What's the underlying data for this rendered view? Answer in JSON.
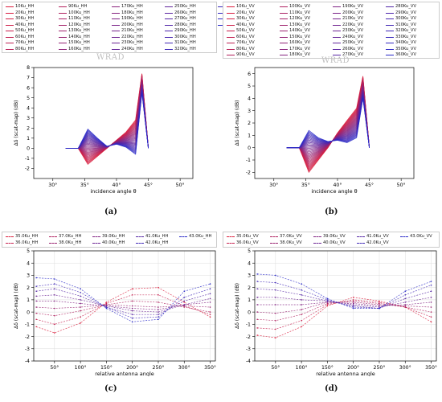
{
  "chart_data": [
    {
      "type": "line",
      "panel_label": "(a)",
      "watermark": "WRAD",
      "xlabel": "incidence angle θ",
      "ylabel": "Δδ (scat-map) (dB)",
      "xlim": [
        27,
        52
      ],
      "ylim": [
        -3,
        8
      ],
      "xticks": [
        30,
        35,
        40,
        45,
        50
      ],
      "xtick_labels": [
        "30°",
        "35°",
        "40°",
        "45°",
        "50°"
      ],
      "yticks": [
        -2,
        -1,
        0,
        1,
        2,
        3,
        4,
        5,
        6,
        7,
        8
      ],
      "legend_entries": [
        "10Ku_HH",
        "20Ku_HH",
        "30Ku_HH",
        "40Ku_HH",
        "50Ku_HH",
        "60Ku_HH",
        "70Ku_HH",
        "80Ku_HH",
        "90Ku_HH",
        "100Ku_HH",
        "110Ku_HH",
        "120Ku_HH",
        "130Ku_HH",
        "140Ku_HH",
        "150Ku_HH",
        "160Ku_HH",
        "170Ku_HH",
        "180Ku_HH",
        "190Ku_HH",
        "200Ku_HH",
        "210Ku_HH",
        "220Ku_HH",
        "230Ku_HH",
        "240Ku_HH",
        "250Ku_HH",
        "260Ku_HH",
        "270Ku_HH",
        "280Ku_HH",
        "290Ku_HH",
        "300Ku_HH",
        "310Ku_HH",
        "320Ku_HH",
        "330Ku_HH",
        "340Ku_HH",
        "350Ku_HH",
        "360Ku_HH"
      ],
      "x": [
        32,
        34,
        35.5,
        37,
        38.5,
        40,
        41.5,
        43,
        44,
        45
      ],
      "series_profile": {
        "first": [
          0,
          0,
          -1.6,
          -0.8,
          0,
          0.8,
          1.6,
          2.8,
          7.4,
          0
        ],
        "last": [
          0,
          0,
          1.9,
          1.0,
          0.2,
          0.4,
          0.1,
          -0.6,
          5.5,
          0
        ]
      }
    },
    {
      "type": "line",
      "panel_label": "(b)",
      "watermark": "WRAD",
      "xlabel": "incidence angle θ",
      "ylabel": "Δδ (scat-map) (dB)",
      "xlim": [
        27,
        52
      ],
      "ylim": [
        -2.5,
        6.5
      ],
      "xticks": [
        30,
        35,
        40,
        45,
        50
      ],
      "xtick_labels": [
        "30°",
        "35°",
        "40°",
        "45°",
        "50°"
      ],
      "yticks": [
        -2,
        -1,
        0,
        1,
        2,
        3,
        4,
        5,
        6
      ],
      "legend_entries": [
        "10Ku_VV",
        "20Ku_VV",
        "30Ku_VV",
        "40Ku_VV",
        "50Ku_VV",
        "60Ku_VV",
        "70Ku_VV",
        "80Ku_VV",
        "90Ku_VV",
        "100Ku_VV",
        "110Ku_VV",
        "120Ku_VV",
        "130Ku_VV",
        "140Ku_VV",
        "150Ku_VV",
        "160Ku_VV",
        "170Ku_VV",
        "180Ku_VV",
        "190Ku_VV",
        "200Ku_VV",
        "210Ku_VV",
        "220Ku_VV",
        "230Ku_VV",
        "240Ku_VV",
        "250Ku_VV",
        "260Ku_VV",
        "270Ku_VV",
        "280Ku_VV",
        "290Ku_VV",
        "300Ku_VV",
        "310Ku_VV",
        "320Ku_VV",
        "330Ku_VV",
        "340Ku_VV",
        "350Ku_VV",
        "360Ku_VV"
      ],
      "x": [
        32,
        34,
        35.5,
        37,
        38.5,
        40,
        41.5,
        43,
        44,
        45
      ],
      "series_profile": {
        "first": [
          0,
          0,
          -2.0,
          -1.0,
          0,
          1.2,
          2.2,
          3.2,
          5.8,
          0
        ],
        "last": [
          0,
          0,
          1.4,
          0.8,
          0.5,
          0.6,
          0.4,
          0.8,
          4.0,
          0
        ]
      }
    },
    {
      "type": "line",
      "panel_label": "(c)",
      "xlabel": "relative antenna angle",
      "ylabel": "Δδ (scat-map) (dB)",
      "xlim": [
        10,
        360
      ],
      "ylim": [
        -4,
        5
      ],
      "xticks": [
        50,
        100,
        150,
        200,
        250,
        300,
        350
      ],
      "xtick_labels": [
        "50°",
        "100°",
        "150°",
        "200°",
        "250°",
        "300°",
        "350°"
      ],
      "yticks": [
        -4,
        -3,
        -2,
        -1,
        0,
        1,
        2,
        3,
        4,
        5
      ],
      "x": [
        15,
        50,
        100,
        150,
        200,
        250,
        300,
        350
      ],
      "series": [
        {
          "name": "35.0Ku_HH",
          "values": [
            -1.2,
            -1.7,
            -0.9,
            0.8,
            1.9,
            2.0,
            0.8,
            -0.4
          ]
        },
        {
          "name": "36.0Ku_HH",
          "values": [
            -0.6,
            -1.0,
            -0.4,
            0.7,
            1.4,
            1.4,
            0.5,
            -0.2
          ]
        },
        {
          "name": "37.0Ku_HH",
          "values": [
            -0.1,
            -0.3,
            0.1,
            0.6,
            0.9,
            0.8,
            0.4,
            0.0
          ]
        },
        {
          "name": "38.0Ku_HH",
          "values": [
            0.4,
            0.3,
            0.4,
            0.6,
            0.5,
            0.4,
            0.5,
            0.4
          ]
        },
        {
          "name": "39.0Ku_HH",
          "values": [
            0.9,
            0.9,
            0.7,
            0.5,
            0.3,
            0.2,
            0.6,
            0.8
          ]
        },
        {
          "name": "40.0Ku_HH",
          "values": [
            1.3,
            1.4,
            1.0,
            0.5,
            0.1,
            0.0,
            0.6,
            1.1
          ]
        },
        {
          "name": "41.0Ku_HH",
          "values": [
            1.7,
            1.9,
            1.3,
            0.4,
            -0.2,
            -0.2,
            0.9,
            1.5
          ]
        },
        {
          "name": "42.0Ku_HH",
          "values": [
            2.1,
            2.3,
            1.6,
            0.4,
            -0.5,
            -0.4,
            1.2,
            1.9
          ]
        },
        {
          "name": "43.0Ku_HH",
          "values": [
            2.8,
            2.7,
            1.9,
            0.3,
            -0.8,
            -0.6,
            1.7,
            2.3
          ]
        }
      ]
    },
    {
      "type": "line",
      "panel_label": "(d)",
      "xlabel": "relative antenna angle",
      "ylabel": "Δδ (scat-map) (dB)",
      "xlim": [
        10,
        360
      ],
      "ylim": [
        -4,
        5
      ],
      "xticks": [
        50,
        100,
        150,
        200,
        250,
        300,
        350
      ],
      "xtick_labels": [
        "50°",
        "100°",
        "150°",
        "200°",
        "250°",
        "300°",
        "350°"
      ],
      "yticks": [
        -4,
        -3,
        -2,
        -1,
        0,
        1,
        2,
        3,
        4,
        5
      ],
      "x": [
        15,
        50,
        100,
        150,
        200,
        250,
        300,
        350
      ],
      "series": [
        {
          "name": "35.0Ku_VV",
          "values": [
            -1.9,
            -2.1,
            -1.2,
            0.5,
            1.2,
            0.9,
            0.4,
            -0.8
          ]
        },
        {
          "name": "36.0Ku_VV",
          "values": [
            -1.3,
            -1.4,
            -0.7,
            0.6,
            1.0,
            0.8,
            0.4,
            -0.4
          ]
        },
        {
          "name": "37.0Ku_VV",
          "values": [
            -0.6,
            -0.7,
            -0.2,
            0.7,
            0.9,
            0.7,
            0.4,
            0.0
          ]
        },
        {
          "name": "38.0Ku_VV",
          "values": [
            0.0,
            -0.1,
            0.2,
            0.8,
            0.8,
            0.6,
            0.5,
            0.4
          ]
        },
        {
          "name": "39.0Ku_VV",
          "values": [
            0.6,
            0.6,
            0.6,
            0.8,
            0.7,
            0.5,
            0.6,
            0.8
          ]
        },
        {
          "name": "40.0Ku_VV",
          "values": [
            1.2,
            1.2,
            1.0,
            0.9,
            0.6,
            0.4,
            0.8,
            1.2
          ]
        },
        {
          "name": "41.0Ku_VV",
          "values": [
            1.9,
            1.8,
            1.4,
            0.9,
            0.5,
            0.3,
            1.1,
            1.7
          ]
        },
        {
          "name": "42.0Ku_VV",
          "values": [
            2.5,
            2.4,
            1.8,
            1.0,
            0.4,
            0.3,
            1.4,
            2.2
          ]
        },
        {
          "name": "43.0Ku_VV",
          "values": [
            3.1,
            3.0,
            2.3,
            1.1,
            0.3,
            0.3,
            1.7,
            2.5
          ]
        }
      ]
    }
  ],
  "colors": {
    "start": "#dc1e3c",
    "end": "#2828c8",
    "axis": "#000000",
    "grid": "#dddddd",
    "legend_border": "#cccccc"
  }
}
